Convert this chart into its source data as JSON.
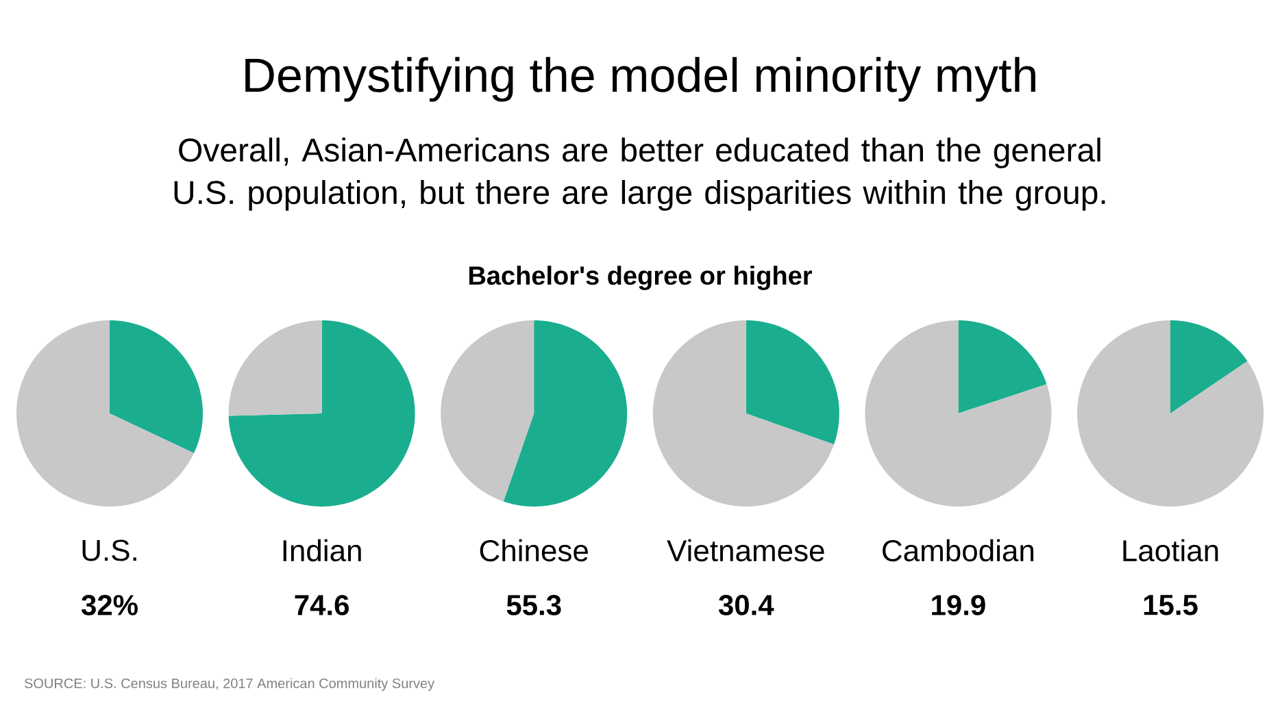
{
  "chart_data": [
    {
      "type": "pie",
      "title": "Demystifying the model minority myth",
      "subtitle": "Overall, Asian-Americans are better educated than the general U.S. population, but there are large disparities within the group.",
      "annotations": [
        "Bachelor's degree or higher",
        "SOURCE: U.S. Census Bureau, 2017 American Community Survey",
        "32%"
      ],
      "xlabel": "U.S.",
      "categories": [
        null,
        null
      ],
      "values": [
        32,
        68
      ],
      "colors": [
        "#1aae8f",
        "#c8c8c9"
      ]
    },
    {
      "type": "pie",
      "xlabel": "Indian",
      "annotations": [
        "74.6"
      ],
      "categories": [
        null,
        null
      ],
      "values": [
        74.6,
        25.4
      ],
      "colors": [
        "#1aae8f",
        "#c8c8c9"
      ]
    },
    {
      "type": "pie",
      "xlabel": "Chinese",
      "annotations": [
        "55.3"
      ],
      "categories": [
        null,
        null
      ],
      "values": [
        55.3,
        44.7
      ],
      "colors": [
        "#1aae8f",
        "#c8c8c9"
      ]
    },
    {
      "type": "pie",
      "xlabel": "Vietnamese",
      "annotations": [
        "30.4"
      ],
      "categories": [
        null,
        null
      ],
      "values": [
        30.4,
        69.6
      ],
      "colors": [
        "#1aae8f",
        "#c8c8c9"
      ]
    },
    {
      "type": "pie",
      "xlabel": "Cambodian",
      "annotations": [
        "19.9"
      ],
      "categories": [
        null,
        null
      ],
      "values": [
        19.9,
        80.1
      ],
      "colors": [
        "#1aae8f",
        "#c8c8c9"
      ]
    },
    {
      "type": "pie",
      "xlabel": "Laotian",
      "annotations": [
        "15.5"
      ],
      "categories": [
        null,
        null
      ],
      "values": [
        15.5,
        84.5
      ],
      "colors": [
        "#1aae8f",
        "#c8c8c9"
      ]
    }
  ]
}
